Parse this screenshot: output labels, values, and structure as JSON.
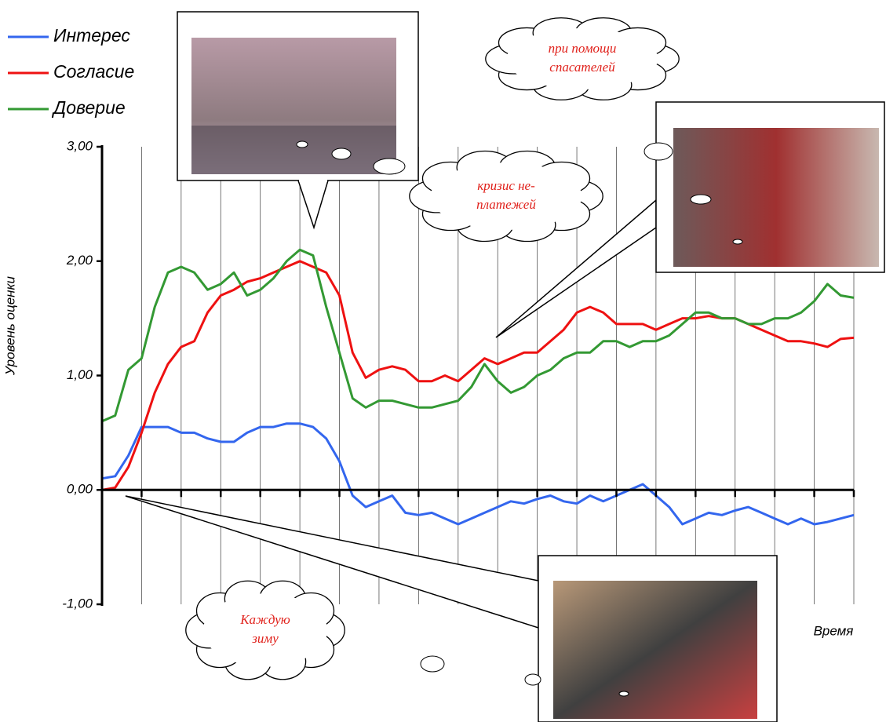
{
  "chart_data": {
    "type": "line",
    "y_label": "Уровень оценки",
    "x_label": "Время",
    "categories": [
      null,
      null,
      null,
      null,
      null,
      null,
      null,
      null,
      null,
      null,
      null,
      null,
      null,
      null,
      null,
      null,
      null,
      null,
      null,
      null,
      null,
      null,
      null,
      null,
      null,
      null,
      null,
      null,
      null,
      null,
      null,
      null,
      null,
      null,
      null,
      null,
      null,
      null,
      null,
      null,
      null,
      null,
      null,
      null,
      null,
      null,
      null,
      null,
      null,
      null,
      null,
      null,
      null,
      null,
      null,
      null,
      null,
      null
    ],
    "series": [
      {
        "name": "Интерес",
        "color": "#3366ee",
        "values": [
          0.1,
          0.12,
          0.3,
          0.55,
          0.55,
          0.55,
          0.5,
          0.5,
          0.45,
          0.42,
          0.42,
          0.5,
          0.55,
          0.55,
          0.58,
          0.58,
          0.55,
          0.45,
          0.25,
          -0.05,
          -0.15,
          -0.1,
          -0.05,
          -0.2,
          -0.22,
          -0.2,
          -0.25,
          -0.3,
          -0.25,
          -0.2,
          -0.15,
          -0.1,
          -0.12,
          -0.08,
          -0.05,
          -0.1,
          -0.12,
          -0.05,
          -0.1,
          -0.05,
          0,
          0.05,
          -0.05,
          -0.15,
          -0.3,
          -0.25,
          -0.2,
          -0.22,
          -0.18,
          -0.15,
          -0.2,
          -0.25,
          -0.3,
          -0.25,
          -0.3,
          -0.28,
          -0.25,
          -0.22
        ]
      },
      {
        "name": "Согласие",
        "color": "#ee1111",
        "values": [
          0,
          0.02,
          0.2,
          0.5,
          0.85,
          1.1,
          1.25,
          1.3,
          1.55,
          1.7,
          1.75,
          1.82,
          1.85,
          1.9,
          1.95,
          2.0,
          1.95,
          1.9,
          1.7,
          1.2,
          0.98,
          1.05,
          1.08,
          1.05,
          0.95,
          0.95,
          1.0,
          0.95,
          1.05,
          1.15,
          1.1,
          1.15,
          1.2,
          1.2,
          1.3,
          1.4,
          1.55,
          1.6,
          1.55,
          1.45,
          1.45,
          1.45,
          1.4,
          1.45,
          1.5,
          1.5,
          1.52,
          1.5,
          1.5,
          1.45,
          1.4,
          1.35,
          1.3,
          1.3,
          1.28,
          1.25,
          1.32,
          1.33
        ]
      },
      {
        "name": "Доверие",
        "color": "#339933",
        "values": [
          0.6,
          0.65,
          1.05,
          1.15,
          1.6,
          1.9,
          1.95,
          1.9,
          1.75,
          1.8,
          1.9,
          1.7,
          1.75,
          1.85,
          2.0,
          2.1,
          2.05,
          1.6,
          1.2,
          0.8,
          0.72,
          0.78,
          0.78,
          0.75,
          0.72,
          0.72,
          0.75,
          0.78,
          0.9,
          1.1,
          0.95,
          0.85,
          0.9,
          1.0,
          1.05,
          1.15,
          1.2,
          1.2,
          1.3,
          1.3,
          1.25,
          1.3,
          1.3,
          1.35,
          1.45,
          1.55,
          1.55,
          1.5,
          1.5,
          1.45,
          1.45,
          1.5,
          1.5,
          1.55,
          1.65,
          1.8,
          1.7,
          1.68
        ]
      }
    ],
    "ylim": [
      -1,
      3
    ],
    "yticks": [
      {
        "value": -1,
        "label": "-1,00"
      },
      {
        "value": 0,
        "label": "0,00"
      },
      {
        "value": 1,
        "label": "1,00"
      },
      {
        "value": 2,
        "label": "2,00"
      },
      {
        "value": 3,
        "label": "3,00"
      }
    ],
    "grid": "x",
    "legend": "top-left",
    "annotations": [
      {
        "lines": [
          "при помощи",
          "спасателей"
        ]
      },
      {
        "lines": [
          "кризис не-",
          "платежей"
        ]
      },
      {
        "lines": [
          "Каждую",
          "зиму"
        ]
      }
    ]
  }
}
